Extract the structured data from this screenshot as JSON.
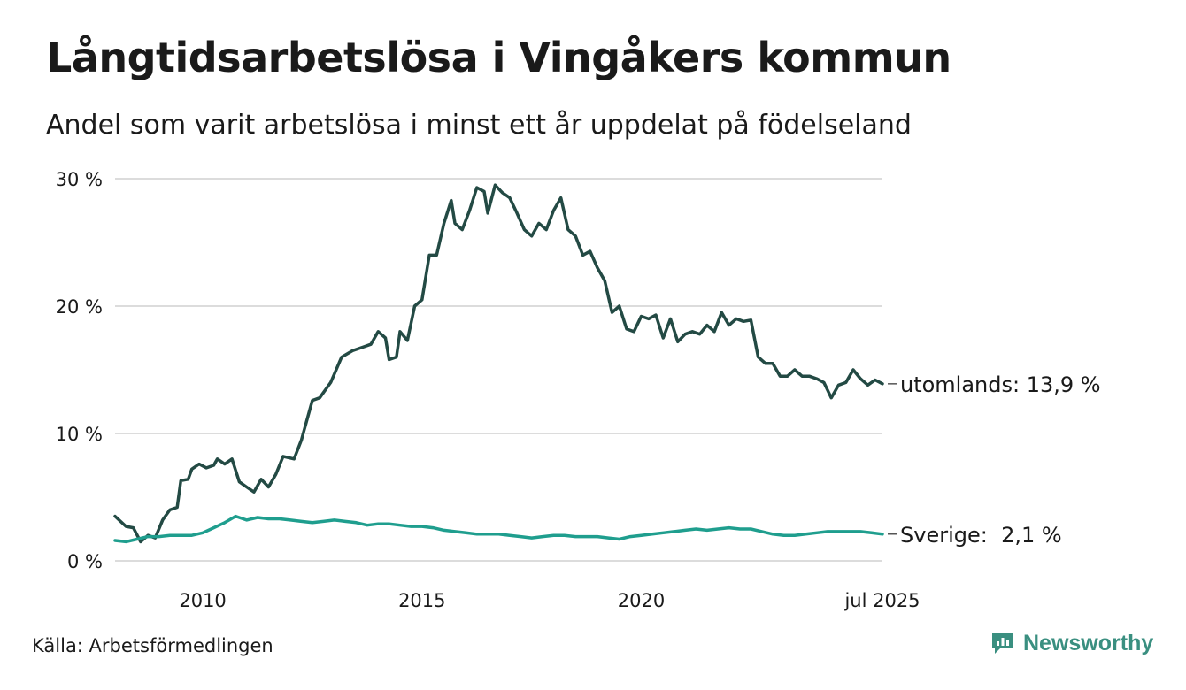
{
  "header": {
    "title": "Långtidsarbetslösa i Vingåkers kommun",
    "subtitle": "Andel som varit arbetslösa i minst ett år uppdelat på födelseland"
  },
  "footer": {
    "source": "Källa: Arbetsförmedlingen",
    "brand": "Newsworthy",
    "brand_icon": "newsworthy-logo-icon"
  },
  "chart_data": {
    "type": "line",
    "ylim": [
      0,
      30
    ],
    "y_ticks": [
      {
        "value": 0,
        "label": "0 %"
      },
      {
        "value": 10,
        "label": "10 %"
      },
      {
        "value": 20,
        "label": "20 %"
      },
      {
        "value": 30,
        "label": "30 %"
      }
    ],
    "x_range": [
      "2008-01",
      "2025-07"
    ],
    "x_ticks": [
      {
        "date": "2010-01",
        "label": "2010"
      },
      {
        "date": "2015-01",
        "label": "2015"
      },
      {
        "date": "2020-01",
        "label": "2020"
      },
      {
        "date": "2025-07",
        "label": "jul 2025"
      }
    ],
    "grid": true,
    "series": [
      {
        "label": "utomlands: 13,9 %",
        "color": "#234a44",
        "points": [
          [
            "2008-01",
            3.5
          ],
          [
            "2008-04",
            2.7
          ],
          [
            "2008-06",
            2.6
          ],
          [
            "2008-08",
            1.5
          ],
          [
            "2008-10",
            2.0
          ],
          [
            "2008-12",
            1.8
          ],
          [
            "2009-02",
            3.2
          ],
          [
            "2009-04",
            4.0
          ],
          [
            "2009-06",
            4.2
          ],
          [
            "2009-07",
            6.3
          ],
          [
            "2009-09",
            6.4
          ],
          [
            "2009-10",
            7.2
          ],
          [
            "2009-12",
            7.6
          ],
          [
            "2010-02",
            7.3
          ],
          [
            "2010-04",
            7.5
          ],
          [
            "2010-05",
            8.0
          ],
          [
            "2010-07",
            7.6
          ],
          [
            "2010-09",
            8.0
          ],
          [
            "2010-11",
            6.2
          ],
          [
            "2011-01",
            5.8
          ],
          [
            "2011-03",
            5.4
          ],
          [
            "2011-05",
            6.4
          ],
          [
            "2011-07",
            5.8
          ],
          [
            "2011-09",
            6.8
          ],
          [
            "2011-11",
            8.2
          ],
          [
            "2012-02",
            8.0
          ],
          [
            "2012-04",
            9.5
          ],
          [
            "2012-07",
            12.6
          ],
          [
            "2012-09",
            12.8
          ],
          [
            "2012-12",
            14.0
          ],
          [
            "2013-03",
            16.0
          ],
          [
            "2013-06",
            16.5
          ],
          [
            "2013-09",
            16.8
          ],
          [
            "2013-11",
            17.0
          ],
          [
            "2014-01",
            18.0
          ],
          [
            "2014-03",
            17.5
          ],
          [
            "2014-04",
            15.8
          ],
          [
            "2014-06",
            16.0
          ],
          [
            "2014-07",
            18.0
          ],
          [
            "2014-09",
            17.3
          ],
          [
            "2014-11",
            20.0
          ],
          [
            "2015-01",
            20.5
          ],
          [
            "2015-03",
            24.0
          ],
          [
            "2015-05",
            24.0
          ],
          [
            "2015-07",
            26.5
          ],
          [
            "2015-09",
            28.3
          ],
          [
            "2015-10",
            26.5
          ],
          [
            "2015-12",
            26.0
          ],
          [
            "2016-02",
            27.5
          ],
          [
            "2016-04",
            29.3
          ],
          [
            "2016-06",
            29.0
          ],
          [
            "2016-07",
            27.3
          ],
          [
            "2016-09",
            29.5
          ],
          [
            "2016-11",
            28.9
          ],
          [
            "2017-01",
            28.5
          ],
          [
            "2017-03",
            27.3
          ],
          [
            "2017-05",
            26.0
          ],
          [
            "2017-07",
            25.5
          ],
          [
            "2017-09",
            26.5
          ],
          [
            "2017-11",
            26.0
          ],
          [
            "2018-01",
            27.5
          ],
          [
            "2018-03",
            28.5
          ],
          [
            "2018-05",
            26.0
          ],
          [
            "2018-07",
            25.5
          ],
          [
            "2018-09",
            24.0
          ],
          [
            "2018-11",
            24.3
          ],
          [
            "2019-01",
            23.0
          ],
          [
            "2019-03",
            22.0
          ],
          [
            "2019-05",
            19.5
          ],
          [
            "2019-07",
            20.0
          ],
          [
            "2019-09",
            18.2
          ],
          [
            "2019-11",
            18.0
          ],
          [
            "2020-01",
            19.2
          ],
          [
            "2020-03",
            19.0
          ],
          [
            "2020-05",
            19.3
          ],
          [
            "2020-07",
            17.5
          ],
          [
            "2020-09",
            19.0
          ],
          [
            "2020-11",
            17.2
          ],
          [
            "2021-01",
            17.8
          ],
          [
            "2021-03",
            18.0
          ],
          [
            "2021-05",
            17.8
          ],
          [
            "2021-07",
            18.5
          ],
          [
            "2021-09",
            18.0
          ],
          [
            "2021-11",
            19.5
          ],
          [
            "2022-01",
            18.5
          ],
          [
            "2022-03",
            19.0
          ],
          [
            "2022-05",
            18.8
          ],
          [
            "2022-07",
            18.9
          ],
          [
            "2022-09",
            16.0
          ],
          [
            "2022-11",
            15.5
          ],
          [
            "2023-01",
            15.5
          ],
          [
            "2023-03",
            14.5
          ],
          [
            "2023-05",
            14.5
          ],
          [
            "2023-07",
            15.0
          ],
          [
            "2023-09",
            14.5
          ],
          [
            "2023-11",
            14.5
          ],
          [
            "2024-01",
            14.3
          ],
          [
            "2024-03",
            14.0
          ],
          [
            "2024-05",
            12.8
          ],
          [
            "2024-07",
            13.8
          ],
          [
            "2024-09",
            14.0
          ],
          [
            "2024-11",
            15.0
          ],
          [
            "2025-01",
            14.3
          ],
          [
            "2025-03",
            13.8
          ],
          [
            "2025-05",
            14.2
          ],
          [
            "2025-07",
            13.9
          ]
        ]
      },
      {
        "label": "Sverige:  2,1 %",
        "color": "#1f9e8e",
        "points": [
          [
            "2008-01",
            1.6
          ],
          [
            "2008-04",
            1.5
          ],
          [
            "2008-07",
            1.7
          ],
          [
            "2008-10",
            1.9
          ],
          [
            "2009-01",
            1.9
          ],
          [
            "2009-04",
            2.0
          ],
          [
            "2009-07",
            2.0
          ],
          [
            "2009-10",
            2.0
          ],
          [
            "2010-01",
            2.2
          ],
          [
            "2010-04",
            2.6
          ],
          [
            "2010-07",
            3.0
          ],
          [
            "2010-10",
            3.5
          ],
          [
            "2011-01",
            3.2
          ],
          [
            "2011-04",
            3.4
          ],
          [
            "2011-07",
            3.3
          ],
          [
            "2011-10",
            3.3
          ],
          [
            "2012-01",
            3.2
          ],
          [
            "2012-04",
            3.1
          ],
          [
            "2012-07",
            3.0
          ],
          [
            "2012-10",
            3.1
          ],
          [
            "2013-01",
            3.2
          ],
          [
            "2013-04",
            3.1
          ],
          [
            "2013-07",
            3.0
          ],
          [
            "2013-10",
            2.8
          ],
          [
            "2014-01",
            2.9
          ],
          [
            "2014-04",
            2.9
          ],
          [
            "2014-07",
            2.8
          ],
          [
            "2014-10",
            2.7
          ],
          [
            "2015-01",
            2.7
          ],
          [
            "2015-04",
            2.6
          ],
          [
            "2015-07",
            2.4
          ],
          [
            "2015-10",
            2.3
          ],
          [
            "2016-01",
            2.2
          ],
          [
            "2016-04",
            2.1
          ],
          [
            "2016-07",
            2.1
          ],
          [
            "2016-10",
            2.1
          ],
          [
            "2017-01",
            2.0
          ],
          [
            "2017-04",
            1.9
          ],
          [
            "2017-07",
            1.8
          ],
          [
            "2017-10",
            1.9
          ],
          [
            "2018-01",
            2.0
          ],
          [
            "2018-04",
            2.0
          ],
          [
            "2018-07",
            1.9
          ],
          [
            "2018-10",
            1.9
          ],
          [
            "2019-01",
            1.9
          ],
          [
            "2019-04",
            1.8
          ],
          [
            "2019-07",
            1.7
          ],
          [
            "2019-10",
            1.9
          ],
          [
            "2020-01",
            2.0
          ],
          [
            "2020-04",
            2.1
          ],
          [
            "2020-07",
            2.2
          ],
          [
            "2020-10",
            2.3
          ],
          [
            "2021-01",
            2.4
          ],
          [
            "2021-04",
            2.5
          ],
          [
            "2021-07",
            2.4
          ],
          [
            "2021-10",
            2.5
          ],
          [
            "2022-01",
            2.6
          ],
          [
            "2022-04",
            2.5
          ],
          [
            "2022-07",
            2.5
          ],
          [
            "2022-10",
            2.3
          ],
          [
            "2023-01",
            2.1
          ],
          [
            "2023-04",
            2.0
          ],
          [
            "2023-07",
            2.0
          ],
          [
            "2023-10",
            2.1
          ],
          [
            "2024-01",
            2.2
          ],
          [
            "2024-04",
            2.3
          ],
          [
            "2024-07",
            2.3
          ],
          [
            "2024-10",
            2.3
          ],
          [
            "2025-01",
            2.3
          ],
          [
            "2025-04",
            2.2
          ],
          [
            "2025-07",
            2.1
          ]
        ]
      }
    ]
  }
}
